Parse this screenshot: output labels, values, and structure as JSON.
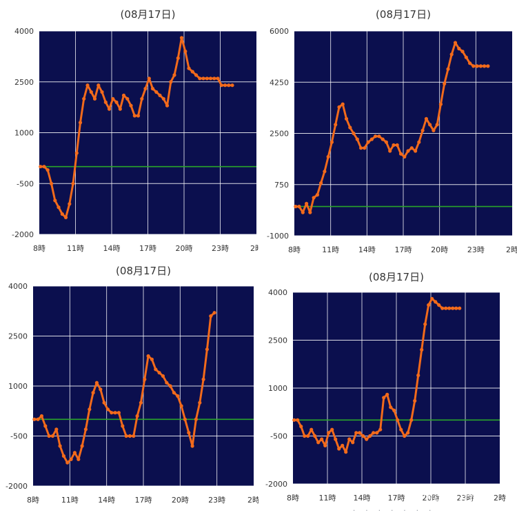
{
  "colors": {
    "plot_bg": "#0b0f4e",
    "grid": "#ffffff",
    "line": "#f26a1b",
    "baseline": "#2aa52a",
    "text": "#333333"
  },
  "watermark": "PhotoGrid",
  "chart_data": [
    {
      "type": "line",
      "title": "(08月17日)",
      "x_ticks": [
        "8時",
        "11時",
        "14時",
        "17時",
        "20時",
        "23時",
        "2時"
      ],
      "x_range": [
        8,
        26
      ],
      "y_ticks": [
        "4000",
        "2500",
        "1000",
        "-500",
        "-2000"
      ],
      "ylim": [
        -2000,
        4000
      ],
      "baseline": 0,
      "grid": true,
      "series": [
        {
          "values": [
            [
              8.1,
              0
            ],
            [
              8.4,
              0
            ],
            [
              8.7,
              -100
            ],
            [
              9.0,
              -500
            ],
            [
              9.3,
              -1000
            ],
            [
              9.6,
              -1200
            ],
            [
              9.9,
              -1400
            ],
            [
              10.2,
              -1500
            ],
            [
              10.5,
              -1100
            ],
            [
              10.8,
              -500
            ],
            [
              11.1,
              400
            ],
            [
              11.4,
              1300
            ],
            [
              11.7,
              2000
            ],
            [
              12.0,
              2400
            ],
            [
              12.3,
              2200
            ],
            [
              12.6,
              2000
            ],
            [
              12.9,
              2400
            ],
            [
              13.2,
              2200
            ],
            [
              13.5,
              1900
            ],
            [
              13.8,
              1700
            ],
            [
              14.1,
              2000
            ],
            [
              14.4,
              1900
            ],
            [
              14.7,
              1700
            ],
            [
              15.0,
              2100
            ],
            [
              15.3,
              2000
            ],
            [
              15.6,
              1800
            ],
            [
              15.9,
              1500
            ],
            [
              16.2,
              1500
            ],
            [
              16.5,
              2000
            ],
            [
              16.8,
              2300
            ],
            [
              17.1,
              2600
            ],
            [
              17.4,
              2300
            ],
            [
              17.7,
              2200
            ],
            [
              18.0,
              2100
            ],
            [
              18.3,
              2000
            ],
            [
              18.6,
              1800
            ],
            [
              18.9,
              2500
            ],
            [
              19.2,
              2700
            ],
            [
              19.5,
              3200
            ],
            [
              19.8,
              3800
            ],
            [
              20.1,
              3400
            ],
            [
              20.4,
              2900
            ],
            [
              20.7,
              2800
            ],
            [
              21.0,
              2700
            ],
            [
              21.3,
              2600
            ],
            [
              21.6,
              2600
            ],
            [
              21.9,
              2600
            ],
            [
              22.2,
              2600
            ],
            [
              22.5,
              2600
            ],
            [
              22.8,
              2600
            ],
            [
              23.1,
              2400
            ],
            [
              23.4,
              2400
            ],
            [
              23.7,
              2400
            ],
            [
              24.0,
              2400
            ]
          ]
        }
      ]
    },
    {
      "type": "line",
      "title": "(08月17日)",
      "x_ticks": [
        "8時",
        "11時",
        "14時",
        "17時",
        "20時",
        "23時",
        "2時"
      ],
      "x_range": [
        8,
        26
      ],
      "y_ticks": [
        "6000",
        "4250",
        "2500",
        "750",
        "-1000"
      ],
      "ylim": [
        -1000,
        6000
      ],
      "baseline": 0,
      "grid": true,
      "series": [
        {
          "values": [
            [
              8.1,
              0
            ],
            [
              8.4,
              0
            ],
            [
              8.7,
              -200
            ],
            [
              9.0,
              100
            ],
            [
              9.3,
              -200
            ],
            [
              9.6,
              300
            ],
            [
              9.9,
              400
            ],
            [
              10.2,
              800
            ],
            [
              10.5,
              1200
            ],
            [
              10.8,
              1700
            ],
            [
              11.1,
              2200
            ],
            [
              11.4,
              2800
            ],
            [
              11.7,
              3400
            ],
            [
              12.0,
              3500
            ],
            [
              12.3,
              3000
            ],
            [
              12.6,
              2700
            ],
            [
              12.9,
              2500
            ],
            [
              13.2,
              2300
            ],
            [
              13.5,
              2000
            ],
            [
              13.8,
              2000
            ],
            [
              14.1,
              2200
            ],
            [
              14.4,
              2300
            ],
            [
              14.7,
              2400
            ],
            [
              15.0,
              2400
            ],
            [
              15.3,
              2300
            ],
            [
              15.6,
              2200
            ],
            [
              15.9,
              1900
            ],
            [
              16.2,
              2100
            ],
            [
              16.5,
              2100
            ],
            [
              16.8,
              1800
            ],
            [
              17.1,
              1700
            ],
            [
              17.4,
              1900
            ],
            [
              17.7,
              2000
            ],
            [
              18.0,
              1900
            ],
            [
              18.3,
              2200
            ],
            [
              18.6,
              2600
            ],
            [
              18.9,
              3000
            ],
            [
              19.2,
              2800
            ],
            [
              19.5,
              2600
            ],
            [
              19.8,
              2800
            ],
            [
              20.1,
              3500
            ],
            [
              20.4,
              4200
            ],
            [
              20.7,
              4700
            ],
            [
              21.0,
              5200
            ],
            [
              21.3,
              5600
            ],
            [
              21.6,
              5400
            ],
            [
              21.9,
              5300
            ],
            [
              22.2,
              5100
            ],
            [
              22.5,
              4900
            ],
            [
              22.8,
              4800
            ],
            [
              23.1,
              4800
            ],
            [
              23.4,
              4800
            ],
            [
              23.7,
              4800
            ],
            [
              24.0,
              4800
            ]
          ]
        }
      ]
    },
    {
      "type": "line",
      "title": "(08月17日)",
      "x_ticks": [
        "8時",
        "11時",
        "14時",
        "17時",
        "20時",
        "23時",
        "2時"
      ],
      "x_range": [
        8,
        26
      ],
      "y_ticks": [
        "4000",
        "2500",
        "1000",
        "-500",
        "-2000"
      ],
      "ylim": [
        -2000,
        4000
      ],
      "baseline": 0,
      "grid": true,
      "series": [
        {
          "values": [
            [
              8.1,
              0
            ],
            [
              8.4,
              0
            ],
            [
              8.7,
              100
            ],
            [
              9.0,
              -200
            ],
            [
              9.3,
              -500
            ],
            [
              9.6,
              -500
            ],
            [
              9.9,
              -300
            ],
            [
              10.2,
              -800
            ],
            [
              10.5,
              -1100
            ],
            [
              10.8,
              -1300
            ],
            [
              11.1,
              -1200
            ],
            [
              11.4,
              -1000
            ],
            [
              11.7,
              -1200
            ],
            [
              12.0,
              -800
            ],
            [
              12.3,
              -300
            ],
            [
              12.6,
              300
            ],
            [
              12.9,
              800
            ],
            [
              13.2,
              1100
            ],
            [
              13.5,
              900
            ],
            [
              13.8,
              500
            ],
            [
              14.1,
              300
            ],
            [
              14.4,
              200
            ],
            [
              14.7,
              200
            ],
            [
              15.0,
              200
            ],
            [
              15.3,
              -200
            ],
            [
              15.6,
              -500
            ],
            [
              15.9,
              -500
            ],
            [
              16.2,
              -500
            ],
            [
              16.5,
              100
            ],
            [
              16.8,
              500
            ],
            [
              17.1,
              1200
            ],
            [
              17.4,
              1900
            ],
            [
              17.7,
              1800
            ],
            [
              18.0,
              1500
            ],
            [
              18.3,
              1400
            ],
            [
              18.6,
              1300
            ],
            [
              18.9,
              1100
            ],
            [
              19.2,
              1000
            ],
            [
              19.5,
              800
            ],
            [
              19.8,
              700
            ],
            [
              20.1,
              400
            ],
            [
              20.4,
              0
            ],
            [
              20.7,
              -400
            ],
            [
              21.0,
              -800
            ],
            [
              21.3,
              0
            ],
            [
              21.6,
              500
            ],
            [
              21.9,
              1200
            ],
            [
              22.2,
              2100
            ],
            [
              22.5,
              3100
            ],
            [
              22.8,
              3200
            ]
          ]
        }
      ]
    },
    {
      "type": "line",
      "title": "(08月17日)",
      "x_ticks": [
        "8時",
        "11時",
        "14時",
        "17時",
        "20時",
        "23時",
        "2時"
      ],
      "x_range": [
        8,
        26
      ],
      "y_ticks": [
        "4000",
        "2500",
        "1000",
        "-500",
        "-2000"
      ],
      "ylim": [
        -2000,
        4000
      ],
      "baseline": 0,
      "grid": true,
      "series": [
        {
          "values": [
            [
              8.1,
              0
            ],
            [
              8.4,
              0
            ],
            [
              8.7,
              -200
            ],
            [
              9.0,
              -500
            ],
            [
              9.3,
              -500
            ],
            [
              9.6,
              -300
            ],
            [
              9.9,
              -500
            ],
            [
              10.2,
              -700
            ],
            [
              10.5,
              -600
            ],
            [
              10.8,
              -800
            ],
            [
              11.1,
              -400
            ],
            [
              11.4,
              -300
            ],
            [
              11.7,
              -600
            ],
            [
              12.0,
              -900
            ],
            [
              12.3,
              -800
            ],
            [
              12.6,
              -1000
            ],
            [
              12.9,
              -600
            ],
            [
              13.2,
              -700
            ],
            [
              13.5,
              -400
            ],
            [
              13.8,
              -400
            ],
            [
              14.1,
              -500
            ],
            [
              14.4,
              -600
            ],
            [
              14.7,
              -500
            ],
            [
              15.0,
              -400
            ],
            [
              15.3,
              -400
            ],
            [
              15.6,
              -300
            ],
            [
              15.9,
              700
            ],
            [
              16.2,
              800
            ],
            [
              16.5,
              400
            ],
            [
              16.8,
              300
            ],
            [
              17.1,
              0
            ],
            [
              17.4,
              -300
            ],
            [
              17.7,
              -500
            ],
            [
              18.0,
              -400
            ],
            [
              18.3,
              0
            ],
            [
              18.6,
              600
            ],
            [
              18.9,
              1400
            ],
            [
              19.2,
              2200
            ],
            [
              19.5,
              3000
            ],
            [
              19.8,
              3600
            ],
            [
              20.1,
              3800
            ],
            [
              20.4,
              3700
            ],
            [
              20.7,
              3600
            ],
            [
              21.0,
              3500
            ],
            [
              21.3,
              3500
            ],
            [
              21.6,
              3500
            ],
            [
              21.9,
              3500
            ],
            [
              22.2,
              3500
            ],
            [
              22.5,
              3500
            ]
          ]
        }
      ]
    }
  ]
}
